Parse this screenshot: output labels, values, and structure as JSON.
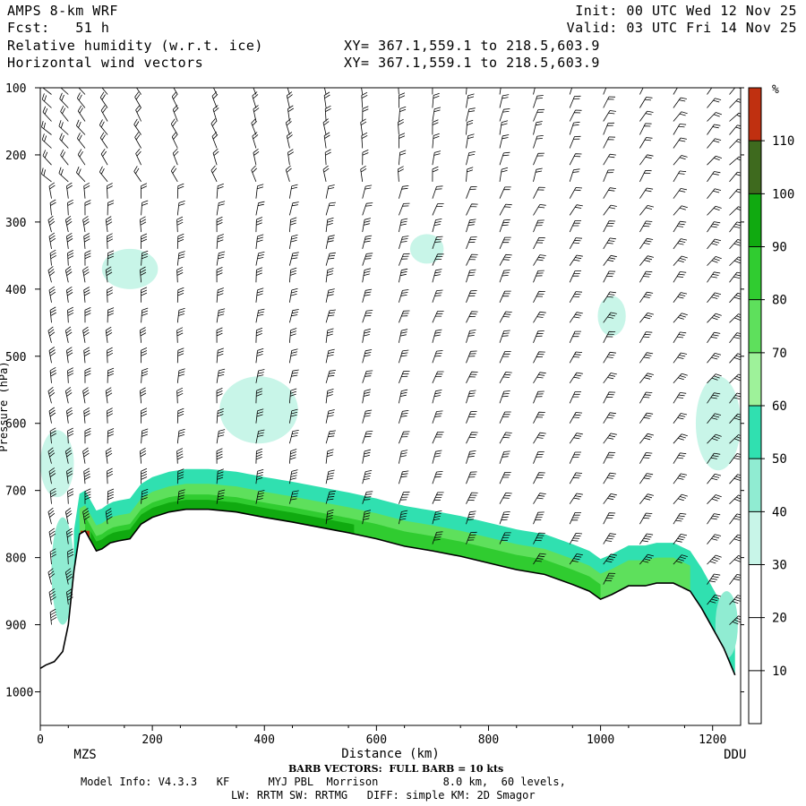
{
  "header": {
    "model": "AMPS 8-km WRF",
    "forecast": "Fcst:   51 h",
    "field1": "Relative humidity (w.r.t. ice)",
    "field2": "Horizontal wind vectors",
    "init": "Init: 00 UTC Wed 12 Nov 25",
    "valid": "Valid: 03 UTC Fri 14 Nov 25",
    "xy1": "XY= 367.1,559.1 to 218.5,603.9",
    "xy2": "XY= 367.1,559.1 to 218.5,603.9"
  },
  "footer": {
    "barb_note": "BARB VECTORS:  FULL BARB = 10 kts",
    "model_info": "Model Info: V4.3.3   KF      MYJ PBL  Morrison          8.0 km,  60 levels,",
    "physics": "LW: RRTM SW: RRTMG   DIFF: simple KM: 2D Smagor"
  },
  "colors": {
    "c10": "#ffffff",
    "c30": "#c8f5e8",
    "c40": "#90ecd2",
    "c50": "#30e0b0",
    "c60": "#9ef29a",
    "c70": "#5ee05c",
    "c80": "#30cc30",
    "c90": "#10aa10",
    "c100": "#0a7a16",
    "c110": "#3e6a1e",
    "c120": "#c03010",
    "terrain": "#000000"
  },
  "chart_data": {
    "type": "cross-section",
    "xlabel": "Distance (km)",
    "ylabel": "Pressure (hPa)",
    "xlim": [
      0,
      1250
    ],
    "ylim": [
      1050,
      100
    ],
    "x_ticks": [
      0,
      200,
      400,
      600,
      800,
      1000,
      1200
    ],
    "x_tick_labels": [
      "0",
      "200",
      "400",
      "600",
      "800",
      "1000",
      "1200"
    ],
    "y_ticks": [
      100,
      200,
      300,
      400,
      500,
      600,
      700,
      800,
      900,
      1000
    ],
    "y_tick_labels": [
      "100",
      "200",
      "300",
      "400",
      "500",
      "600",
      "700",
      "800",
      "900",
      "1000"
    ],
    "endpoint_left": "MZS",
    "endpoint_right": "DDU",
    "endpoint_positions_km": [
      80,
      1240
    ],
    "colorbar": {
      "unit": "%",
      "levels": [
        10,
        20,
        30,
        40,
        50,
        60,
        70,
        80,
        90,
        100,
        110
      ],
      "labels": [
        "10",
        "20",
        "30",
        "40",
        "50",
        "60",
        "70",
        "80",
        "90",
        "100",
        "110"
      ],
      "range": [
        0,
        120
      ]
    },
    "terrain_surface_hpa": [
      [
        0,
        965
      ],
      [
        10,
        960
      ],
      [
        25,
        955
      ],
      [
        40,
        940
      ],
      [
        50,
        900
      ],
      [
        60,
        820
      ],
      [
        70,
        765
      ],
      [
        80,
        760
      ],
      [
        90,
        775
      ],
      [
        100,
        790
      ],
      [
        110,
        787
      ],
      [
        125,
        778
      ],
      [
        140,
        775
      ],
      [
        160,
        772
      ],
      [
        180,
        750
      ],
      [
        200,
        740
      ],
      [
        230,
        732
      ],
      [
        260,
        728
      ],
      [
        300,
        728
      ],
      [
        350,
        732
      ],
      [
        400,
        740
      ],
      [
        450,
        747
      ],
      [
        500,
        755
      ],
      [
        550,
        763
      ],
      [
        600,
        772
      ],
      [
        650,
        783
      ],
      [
        700,
        790
      ],
      [
        750,
        798
      ],
      [
        800,
        808
      ],
      [
        850,
        818
      ],
      [
        900,
        825
      ],
      [
        950,
        840
      ],
      [
        980,
        850
      ],
      [
        1000,
        862
      ],
      [
        1020,
        855
      ],
      [
        1050,
        842
      ],
      [
        1080,
        842
      ],
      [
        1100,
        838
      ],
      [
        1130,
        838
      ],
      [
        1160,
        850
      ],
      [
        1180,
        875
      ],
      [
        1200,
        905
      ],
      [
        1220,
        935
      ],
      [
        1240,
        975
      ]
    ],
    "humid_patches": [
      {
        "x": 160,
        "p": 370,
        "rx": 50,
        "rp": 30,
        "rh": 35
      },
      {
        "x": 390,
        "p": 580,
        "rx": 70,
        "rp": 50,
        "rh": 35
      },
      {
        "x": 690,
        "p": 340,
        "rx": 30,
        "rp": 22,
        "rh": 35
      },
      {
        "x": 1020,
        "p": 440,
        "rx": 25,
        "rp": 30,
        "rh": 35
      },
      {
        "x": 1210,
        "p": 600,
        "rx": 40,
        "rp": 70,
        "rh": 35
      },
      {
        "x": 30,
        "p": 660,
        "rx": 30,
        "rp": 50,
        "rh": 35
      }
    ],
    "vector_columns_km": [
      20,
      50,
      80,
      120,
      180,
      245,
      315,
      385,
      445,
      510,
      575,
      640,
      700,
      760,
      820,
      880,
      945,
      1005,
      1070,
      1130,
      1190,
      1230
    ],
    "vector_levels_hpa": [
      110,
      130,
      150,
      170,
      190,
      215,
      240,
      265,
      290,
      315,
      340,
      365,
      390,
      420,
      450,
      480,
      510,
      540,
      570,
      600,
      630,
      660,
      690,
      720,
      750,
      780,
      810,
      840,
      870,
      900
    ]
  }
}
